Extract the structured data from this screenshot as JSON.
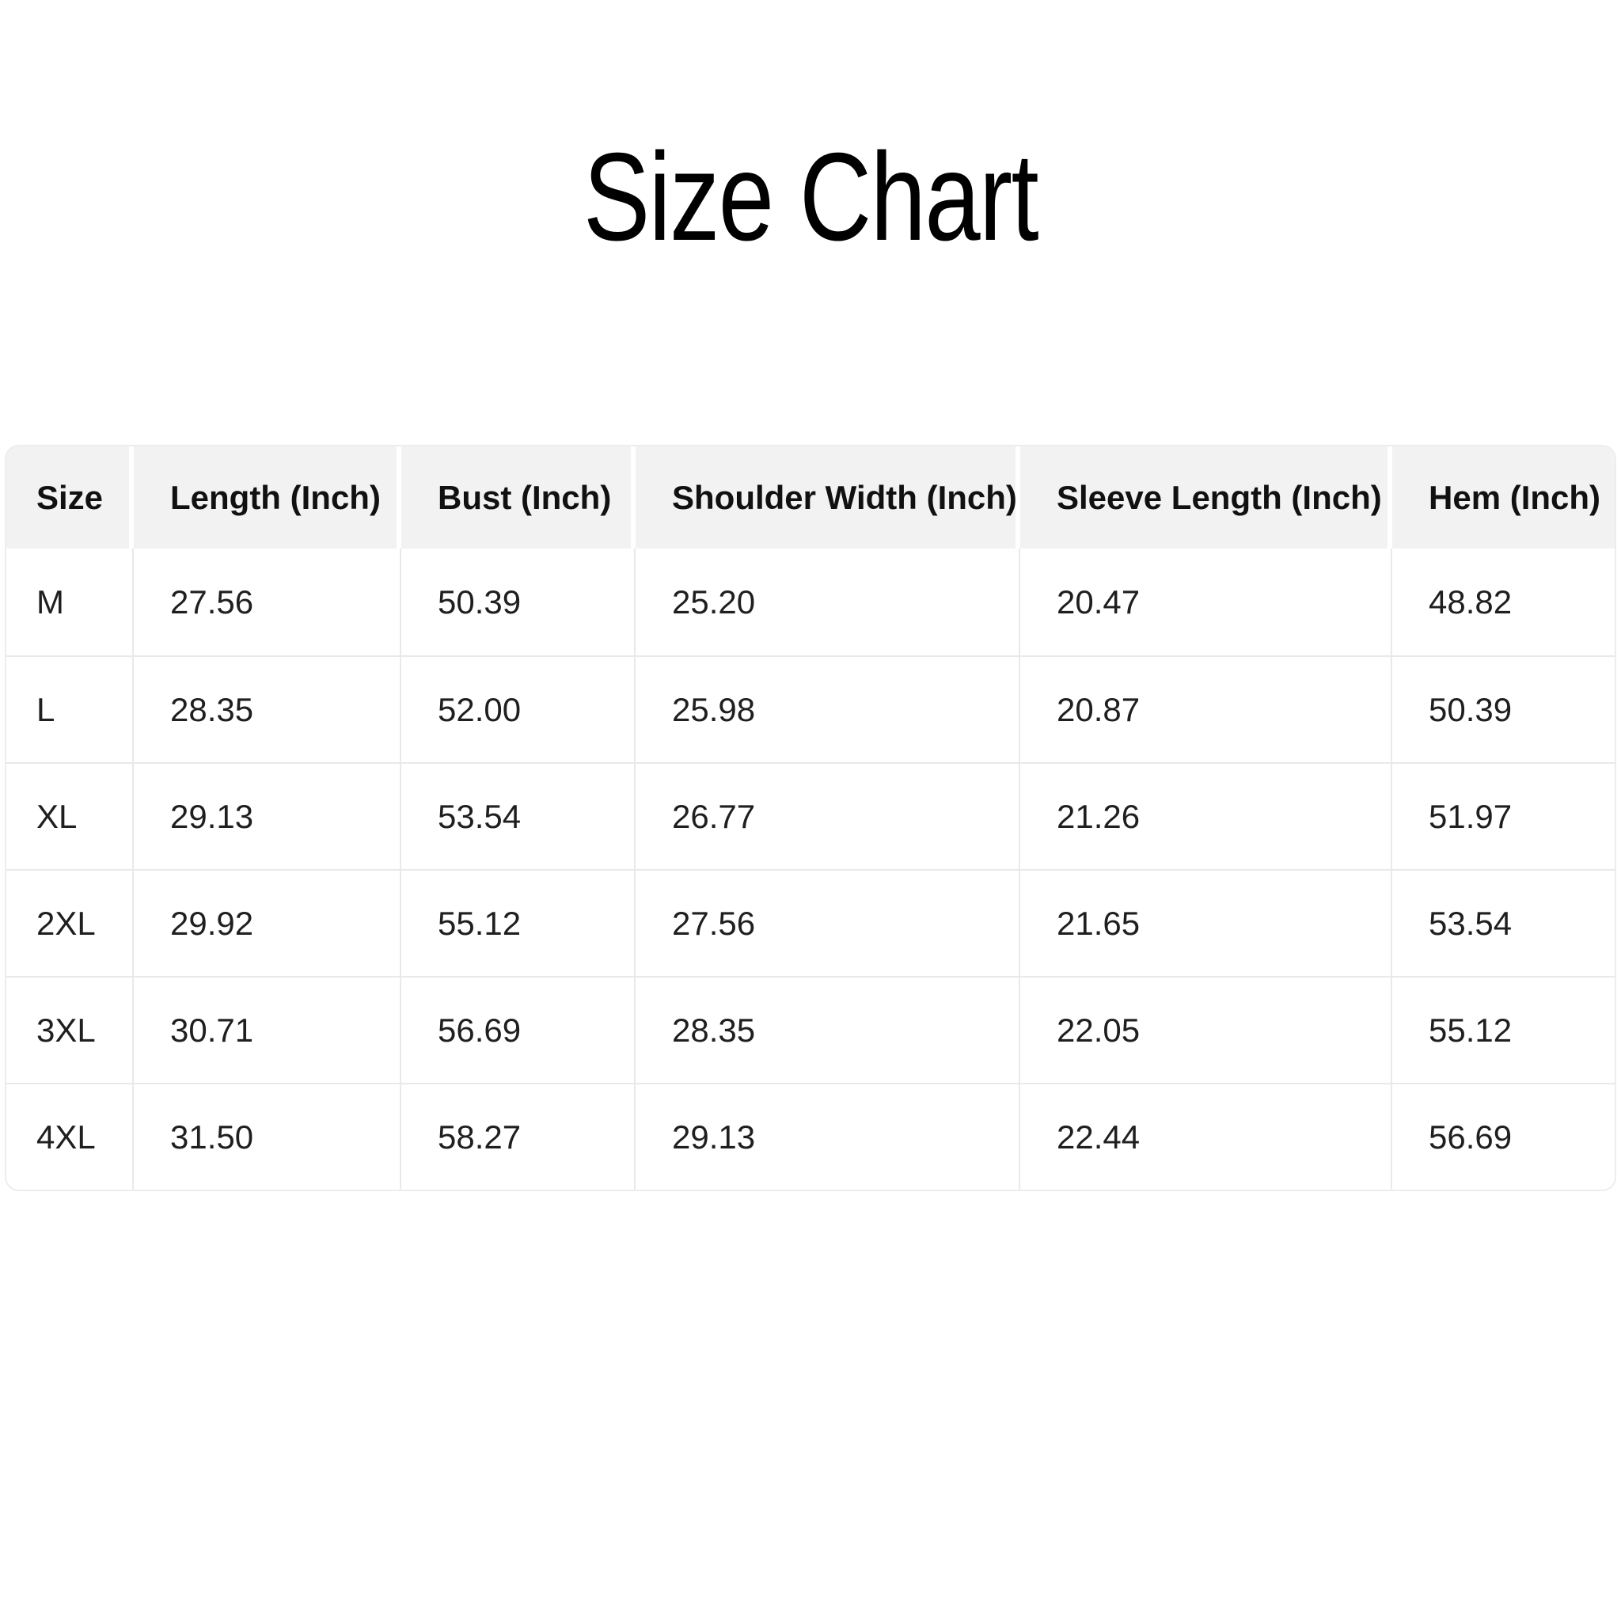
{
  "title": "Size Chart",
  "colors": {
    "header_bg": "#f2f2f2",
    "grid_line": "#e9e9e9",
    "text": "#1f1f1f",
    "title_text": "#000000",
    "page_bg": "#ffffff"
  },
  "chart_data": {
    "type": "table",
    "title": "Size Chart",
    "columns": [
      "Size",
      "Length (Inch)",
      "Bust (Inch)",
      "Shoulder Width (Inch)",
      "Sleeve Length (Inch)",
      "Hem (Inch)"
    ],
    "rows": [
      [
        "M",
        "27.56",
        "50.39",
        "25.20",
        "20.47",
        "48.82"
      ],
      [
        "L",
        "28.35",
        "52.00",
        "25.98",
        "20.87",
        "50.39"
      ],
      [
        "XL",
        "29.13",
        "53.54",
        "26.77",
        "21.26",
        "51.97"
      ],
      [
        "2XL",
        "29.92",
        "55.12",
        "27.56",
        "21.65",
        "53.54"
      ],
      [
        "3XL",
        "30.71",
        "56.69",
        "28.35",
        "22.05",
        "55.12"
      ],
      [
        "4XL",
        "31.50",
        "58.27",
        "29.13",
        "22.44",
        "56.69"
      ]
    ],
    "layout": {
      "header_background": "#f2f2f2",
      "grid": true,
      "corner_radius": true,
      "value_alignment": "left"
    }
  }
}
